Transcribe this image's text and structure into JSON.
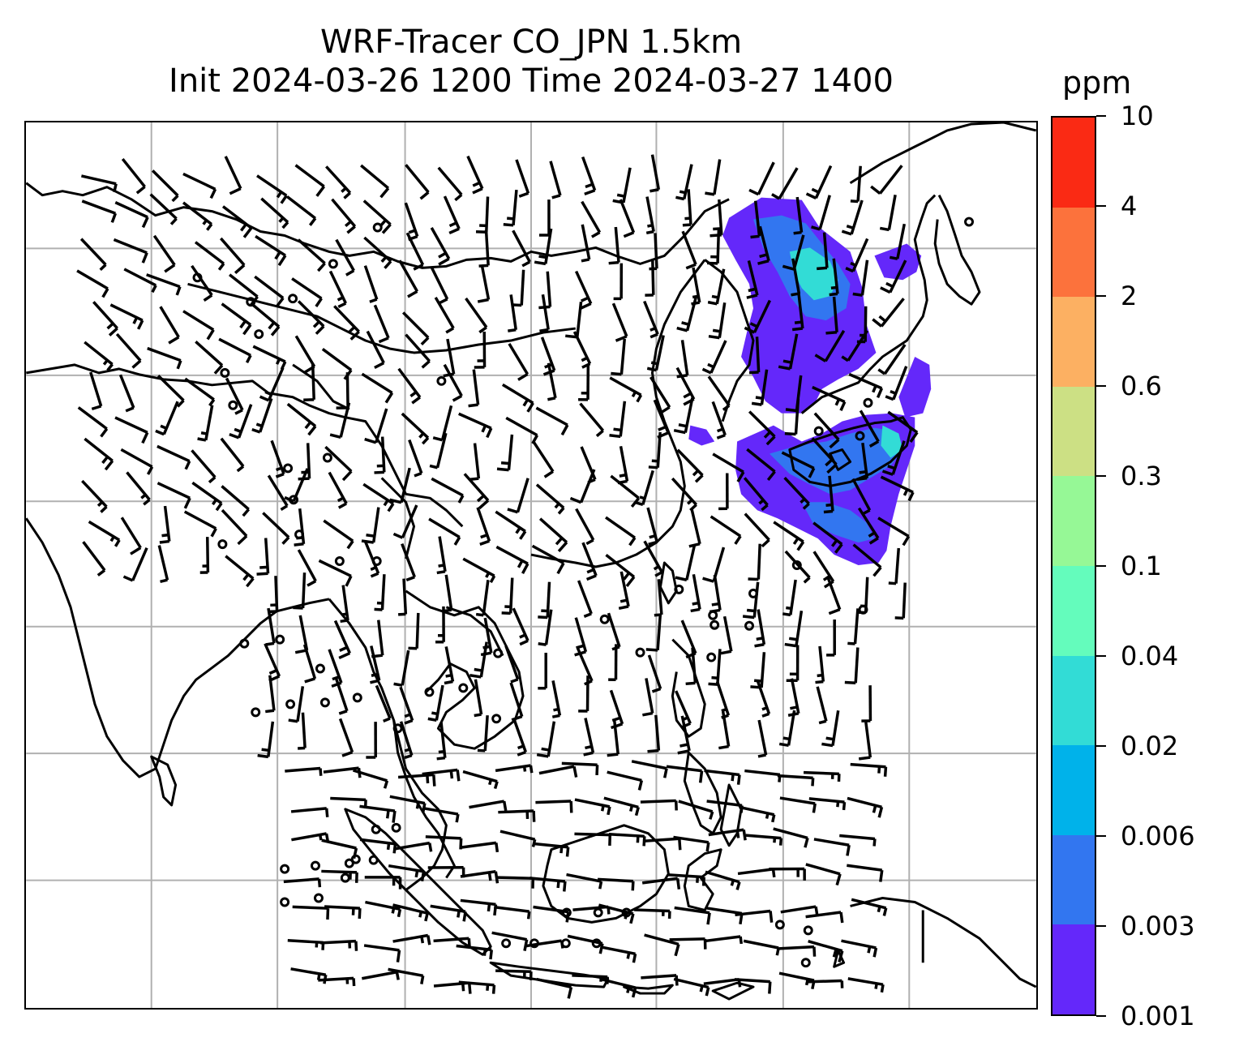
{
  "title": {
    "line1": "WRF-Tracer CO_JPN 1.5km",
    "line2": "Init 2024-03-26 1200 Time 2024-03-27 1400"
  },
  "colorbar": {
    "unit": "ppm",
    "labels": [
      "0.001",
      "0.003",
      "0.006",
      "0.02",
      "0.04",
      "0.1",
      "0.3",
      "0.6",
      "2",
      "4",
      "10"
    ],
    "colors": [
      "#6428fa",
      "#3276f0",
      "#00b2ea",
      "#32dcd6",
      "#64fcbc",
      "#96f896",
      "#cce084",
      "#fcb062",
      "#fc723c",
      "#fa2a14"
    ]
  },
  "map": {
    "coastline_color": "#000000",
    "gridline_color": "#b0b0b0",
    "wind_barb_color": "#000000",
    "plume_colors": {
      "low": "#6428fa",
      "mid": "#3276f0",
      "high": "#32dcd6"
    }
  }
}
